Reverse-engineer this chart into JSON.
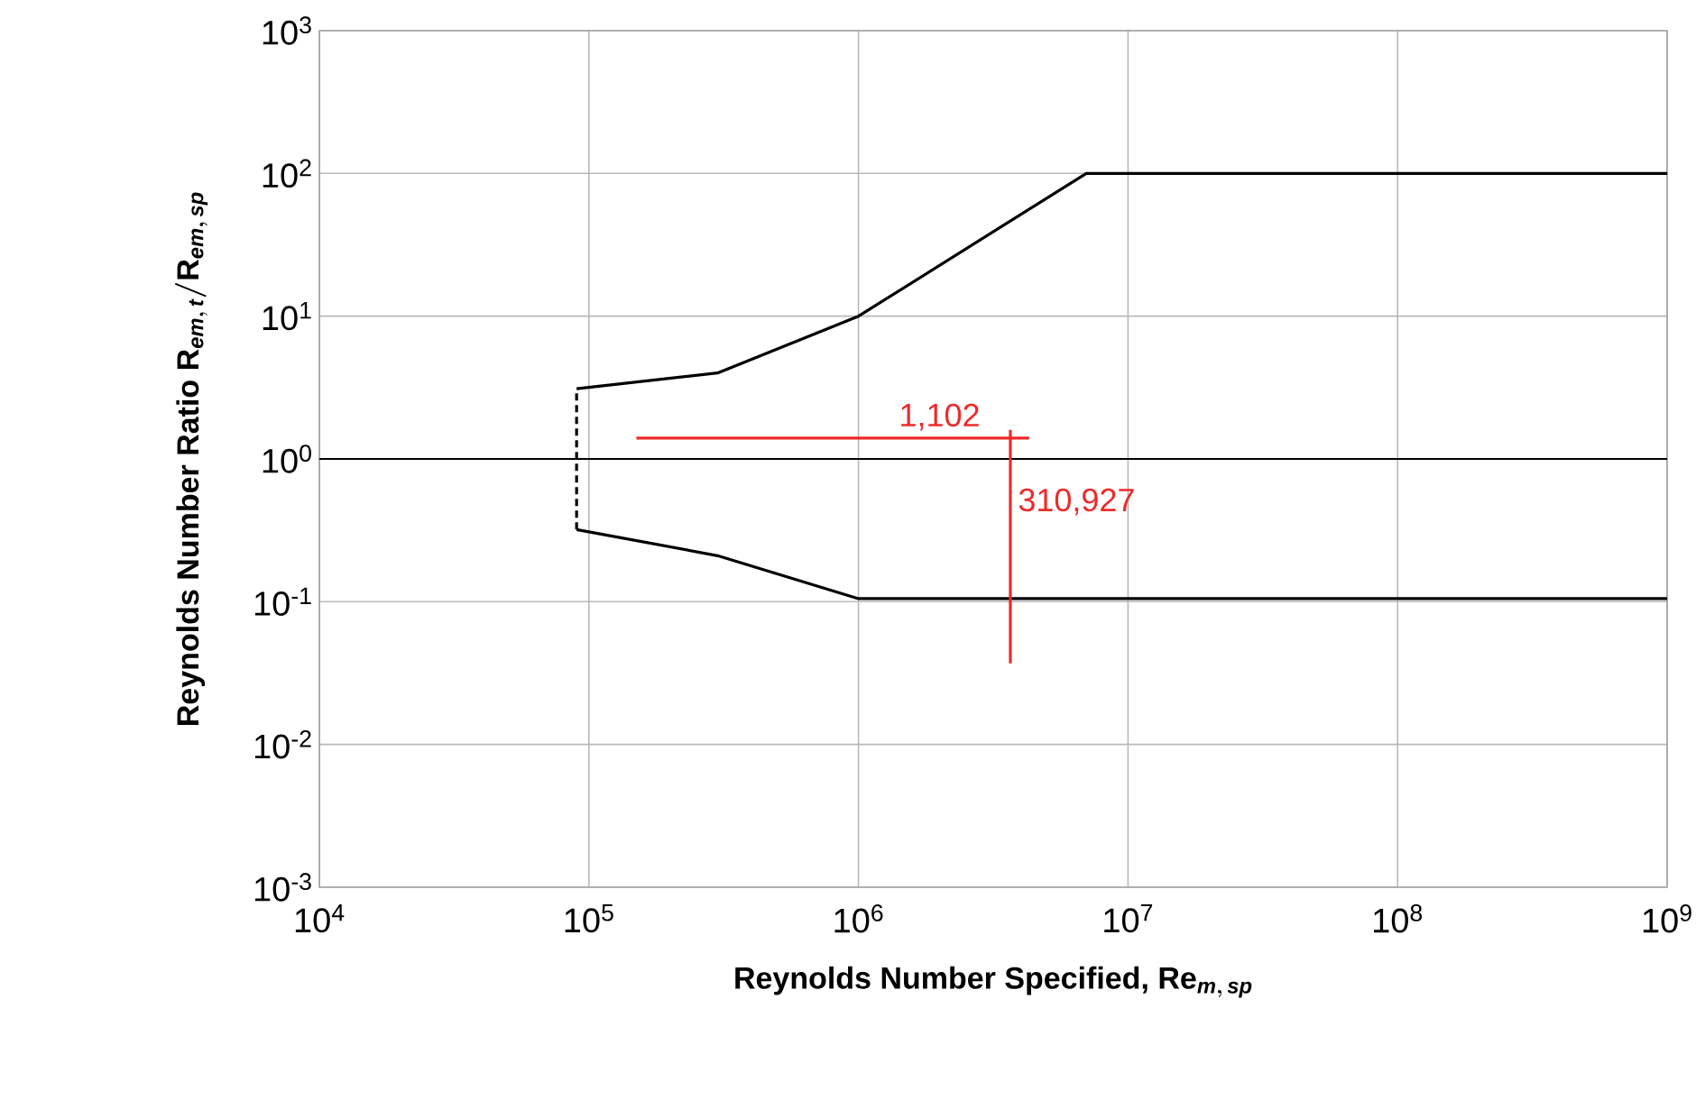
{
  "chart_data": {
    "type": "line",
    "xlabel": "\\text{Reynolds Number Specified, }\\mathrm{Re}_{\\mathit{m,\\,sp}}",
    "ylabel": "\\text{Reynolds Number Ratio }\\mathrm{R}_{\\mathit{em,\\,t}}/\\mathrm{R}_{\\mathit{em,\\,sp}}",
    "log": "xy",
    "xlim": [
      10000,
      1000000000
    ],
    "ylim": [
      0.001,
      1000
    ],
    "xticks": [
      {
        "value": 10000,
        "label": "10$^{4}$"
      },
      {
        "value": 100000,
        "label": "10$^{5}$"
      },
      {
        "value": 1000000,
        "label": "10$^{6}$"
      },
      {
        "value": 10000000,
        "label": "10$^{7}$"
      },
      {
        "value": 100000000,
        "label": "10$^{8}$"
      },
      {
        "value": 1000000000,
        "label": "10$^{9}$"
      }
    ],
    "yticks": [
      {
        "value": 0.001,
        "label": "10$^{-3}$"
      },
      {
        "value": 0.01,
        "label": "10$^{-2}$"
      },
      {
        "value": 0.1,
        "label": "10$^{-1}$"
      },
      {
        "value": 1,
        "label": "10$^{0}$"
      },
      {
        "value": 10,
        "label": "10$^{1}$"
      },
      {
        "value": 100,
        "label": "10$^{2}$"
      },
      {
        "value": 1000,
        "label": "10$^{3}$"
      }
    ],
    "grid": true,
    "series": [
      {
        "color": "#000000",
        "line_style": "solid",
        "x": [
          90000,
          300000,
          1000000,
          7000000,
          1000000000
        ],
        "values": [
          3.1,
          4,
          10,
          100,
          100
        ]
      },
      {
        "color": "#000000",
        "line_style": "solid",
        "x": [
          90000,
          300000,
          1000000,
          1000000000
        ],
        "values": [
          0.32,
          0.21,
          0.105,
          0.105
        ]
      },
      {
        "color": "#000000",
        "line_style": "dashed",
        "x": [
          90000,
          90000
        ],
        "values": [
          0.32,
          3.1
        ]
      },
      {
        "color": "#ee2a2a",
        "line_style": "solid",
        "x": [
          150000,
          4300000
        ],
        "values": [
          1.4,
          1.4
        ]
      },
      {
        "color": "#ee2a2a",
        "line_style": "solid",
        "x": [
          3660000,
          3660000
        ],
        "values": [
          1.6,
          0.037
        ]
      }
    ],
    "ref_lines": [
      {
        "axis": "y",
        "value": 1,
        "color": "#000000"
      }
    ],
    "annotations": [
      {
        "text": "1,102",
        "x": 2000000,
        "y": 1.4
      },
      {
        "text": "310,927",
        "x": 3660000,
        "y": 0.5
      }
    ]
  }
}
